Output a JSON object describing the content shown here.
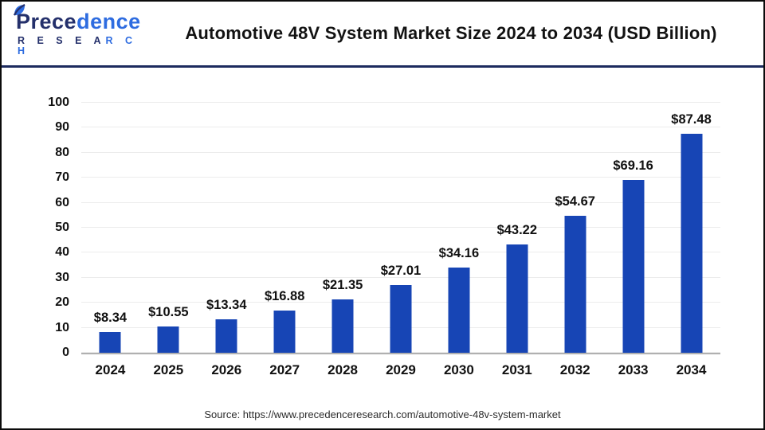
{
  "header": {
    "logo": {
      "word_primary": "Prece",
      "word_secondary": "dence",
      "sub_primary": "R E S E A",
      "sub_secondary": "R C H"
    },
    "title": "Automotive 48V System Market Size 2024 to 2034 (USD Billion)"
  },
  "chart_data": {
    "type": "bar",
    "title": "Automotive 48V System Market Size 2024 to 2034 (USD Billion)",
    "categories": [
      "2024",
      "2025",
      "2026",
      "2027",
      "2028",
      "2029",
      "2030",
      "2031",
      "2032",
      "2033",
      "2034"
    ],
    "values": [
      8.34,
      10.55,
      13.34,
      16.88,
      21.35,
      27.01,
      34.16,
      43.22,
      54.67,
      69.16,
      87.48
    ],
    "data_labels": [
      "$8.34",
      "$10.55",
      "$13.34",
      "$16.88",
      "$21.35",
      "$27.01",
      "$34.16",
      "$43.22",
      "$54.67",
      "$69.16",
      "$87.48"
    ],
    "xlabel": "",
    "ylabel": "",
    "ylim": [
      0,
      100
    ],
    "yticks": [
      0,
      10,
      20,
      30,
      40,
      50,
      60,
      70,
      80,
      90,
      100
    ],
    "grid": "horizontal",
    "legend": "none",
    "bar_color": "#1745b5"
  },
  "footer": {
    "source": "Source: https://www.precedenceresearch.com/automotive-48v-system-market"
  },
  "colors": {
    "bar": "#1745b5",
    "gridline": "#ececec",
    "axis_line": "#b0b0b0",
    "header_rule": "#1c2a5e",
    "logo_navy": "#24306b",
    "logo_blue": "#2e6ce0",
    "page_border": "#0b0b0b"
  }
}
